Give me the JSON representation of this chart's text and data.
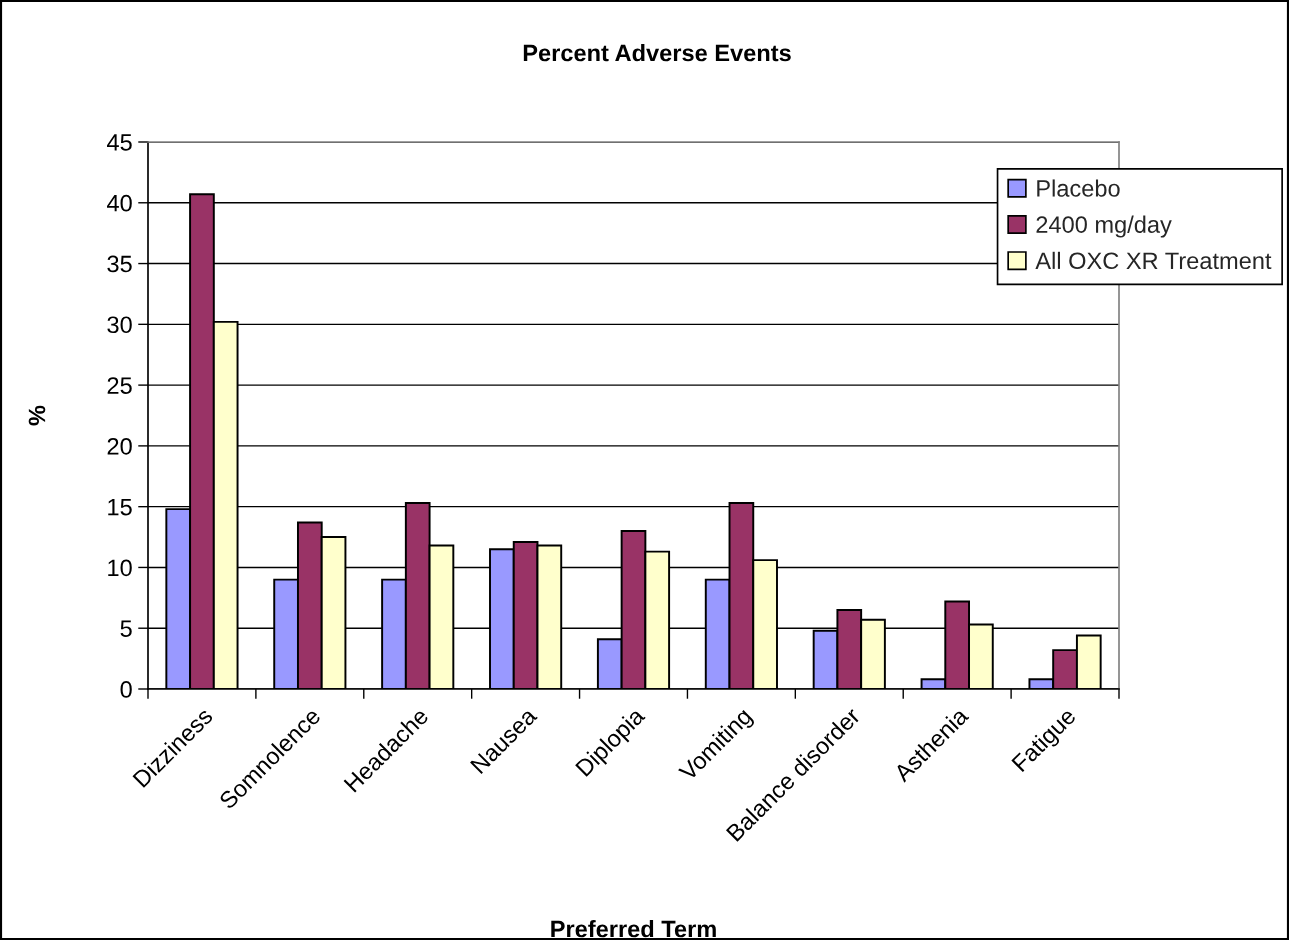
{
  "chart_data": {
    "type": "bar",
    "title": "Percent Adverse Events",
    "xlabel": "Preferred Term",
    "ylabel": "%",
    "categories": [
      "Dizziness",
      "Somnolence",
      "Headache",
      "Nausea",
      "Diplopia",
      "Vomiting",
      "Balance disorder",
      "Asthenia",
      "Fatigue"
    ],
    "series": [
      {
        "name": "Placebo",
        "color": "#9999ff",
        "values": [
          14.8,
          9.0,
          9.0,
          11.5,
          4.1,
          9.0,
          4.8,
          0.8,
          0.8
        ]
      },
      {
        "name": "2400 mg/day",
        "color": "#993366",
        "values": [
          40.7,
          13.7,
          15.3,
          12.1,
          13.0,
          15.3,
          6.5,
          7.2,
          3.2
        ]
      },
      {
        "name": "All OXC XR Treatment",
        "color": "#ffffcc",
        "values": [
          30.2,
          12.5,
          11.8,
          11.8,
          11.3,
          10.6,
          5.7,
          5.3,
          4.4
        ]
      }
    ],
    "ylim": [
      0,
      45
    ],
    "yticks": [
      0,
      5,
      10,
      15,
      20,
      25,
      30,
      35,
      40,
      45
    ],
    "grid": "y",
    "legend": "top right"
  }
}
